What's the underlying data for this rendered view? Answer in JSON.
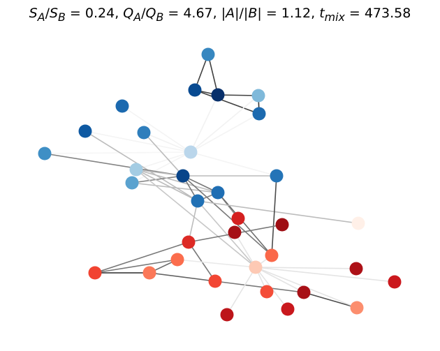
{
  "title": {
    "S_ratio": "0.24",
    "Q_ratio": "4.67",
    "size_ratio": "1.12",
    "t_mix": "473.58"
  },
  "graph": {
    "nodes": [
      {
        "id": 0,
        "color": "#3787c0"
      },
      {
        "id": 1,
        "color": "#084a91"
      },
      {
        "id": 2,
        "color": "#08306b"
      },
      {
        "id": 3,
        "color": "#7fb9da"
      },
      {
        "id": 4,
        "color": "#1c6aaf"
      },
      {
        "id": 5,
        "color": "#1b69af"
      },
      {
        "id": 6,
        "color": "#0e59a2"
      },
      {
        "id": 7,
        "color": "#2e7ebc"
      },
      {
        "id": 8,
        "color": "#bad6eb"
      },
      {
        "id": 9,
        "color": "#3f8fc5"
      },
      {
        "id": 10,
        "color": "#a3cce3"
      },
      {
        "id": 11,
        "color": "#08458a"
      },
      {
        "id": 12,
        "color": "#1f6eb3"
      },
      {
        "id": 13,
        "color": "#5aa2cf"
      },
      {
        "id": 14,
        "color": "#2171b5"
      },
      {
        "id": 15,
        "color": "#2474b7"
      },
      {
        "id": 16,
        "color": "#d42020"
      },
      {
        "id": 17,
        "color": "#fff0e8"
      },
      {
        "id": 18,
        "color": "#9f0e14"
      },
      {
        "id": 19,
        "color": "#a50f15"
      },
      {
        "id": 20,
        "color": "#dd2a25"
      },
      {
        "id": 21,
        "color": "#fb6d4d"
      },
      {
        "id": 22,
        "color": "#fa6849"
      },
      {
        "id": 23,
        "color": "#f14331"
      },
      {
        "id": 24,
        "color": "#fb7858"
      },
      {
        "id": 25,
        "color": "#fdc9b4"
      },
      {
        "id": 26,
        "color": "#ad1117"
      },
      {
        "id": 27,
        "color": "#f24633"
      },
      {
        "id": 28,
        "color": "#a81016"
      },
      {
        "id": 29,
        "color": "#f44d38"
      },
      {
        "id": 30,
        "color": "#c9181d"
      },
      {
        "id": 31,
        "color": "#cb181d"
      },
      {
        "id": 32,
        "color": "#bd151a"
      },
      {
        "id": 33,
        "color": "#fc8e6e"
      }
    ],
    "edges": [
      {
        "a": 0,
        "b": 1,
        "w": 0.85
      },
      {
        "a": 0,
        "b": 2,
        "w": 0.85
      },
      {
        "a": 1,
        "b": 2,
        "w": 0.85
      },
      {
        "a": 2,
        "b": 3,
        "w": 0.85
      },
      {
        "a": 1,
        "b": 4,
        "w": 0.85
      },
      {
        "a": 3,
        "b": 4,
        "w": 0.9
      },
      {
        "a": 2,
        "b": 8,
        "w": 0.06
      },
      {
        "a": 3,
        "b": 8,
        "w": 0.06
      },
      {
        "a": 5,
        "b": 8,
        "w": 0.05
      },
      {
        "a": 7,
        "b": 8,
        "w": 0.06
      },
      {
        "a": 6,
        "b": 8,
        "w": 0.05
      },
      {
        "a": 9,
        "b": 8,
        "w": 0.04
      },
      {
        "a": 10,
        "b": 8,
        "w": 0.05
      },
      {
        "a": 15,
        "b": 8,
        "w": 0.05
      },
      {
        "a": 4,
        "b": 8,
        "w": 0.05
      },
      {
        "a": 8,
        "b": 13,
        "w": 0.05
      },
      {
        "a": 6,
        "b": 14,
        "w": 0.3
      },
      {
        "a": 7,
        "b": 11,
        "w": 0.3
      },
      {
        "a": 9,
        "b": 11,
        "w": 0.55
      },
      {
        "a": 10,
        "b": 11,
        "w": 0.3
      },
      {
        "a": 13,
        "b": 11,
        "w": 0.55
      },
      {
        "a": 10,
        "b": 12,
        "w": 0.3
      },
      {
        "a": 13,
        "b": 12,
        "w": 0.3
      },
      {
        "a": 11,
        "b": 12,
        "w": 0.6
      },
      {
        "a": 11,
        "b": 14,
        "w": 0.6
      },
      {
        "a": 11,
        "b": 15,
        "w": 0.3
      },
      {
        "a": 10,
        "b": 14,
        "w": 0.3
      },
      {
        "a": 10,
        "b": 25,
        "w": 0.25
      },
      {
        "a": 11,
        "b": 22,
        "w": 0.6
      },
      {
        "a": 12,
        "b": 14,
        "w": 0.55
      },
      {
        "a": 12,
        "b": 16,
        "w": 0.5
      },
      {
        "a": 12,
        "b": 22,
        "w": 0.65
      },
      {
        "a": 14,
        "b": 17,
        "w": 0.3
      },
      {
        "a": 14,
        "b": 20,
        "w": 0.3
      },
      {
        "a": 14,
        "b": 25,
        "w": 0.25
      },
      {
        "a": 15,
        "b": 22,
        "w": 0.8
      },
      {
        "a": 20,
        "b": 18,
        "w": 0.6
      },
      {
        "a": 20,
        "b": 23,
        "w": 0.6
      },
      {
        "a": 20,
        "b": 27,
        "w": 0.6
      },
      {
        "a": 21,
        "b": 23,
        "w": 0.6
      },
      {
        "a": 21,
        "b": 24,
        "w": 0.65
      },
      {
        "a": 23,
        "b": 24,
        "w": 0.95
      },
      {
        "a": 24,
        "b": 27,
        "w": 0.7
      },
      {
        "a": 27,
        "b": 28,
        "w": 0.6
      },
      {
        "a": 28,
        "b": 33,
        "w": 0.8
      },
      {
        "a": 25,
        "b": 22,
        "w": 0.12
      },
      {
        "a": 25,
        "b": 21,
        "w": 0.1
      },
      {
        "a": 25,
        "b": 26,
        "w": 0.12
      },
      {
        "a": 25,
        "b": 19,
        "w": 0.12
      },
      {
        "a": 25,
        "b": 29,
        "w": 0.12
      },
      {
        "a": 25,
        "b": 30,
        "w": 0.12
      },
      {
        "a": 25,
        "b": 31,
        "w": 0.12
      },
      {
        "a": 25,
        "b": 32,
        "w": 0.12
      },
      {
        "a": 25,
        "b": 28,
        "w": 0.12
      },
      {
        "a": 25,
        "b": 33,
        "w": 0.12
      }
    ]
  }
}
